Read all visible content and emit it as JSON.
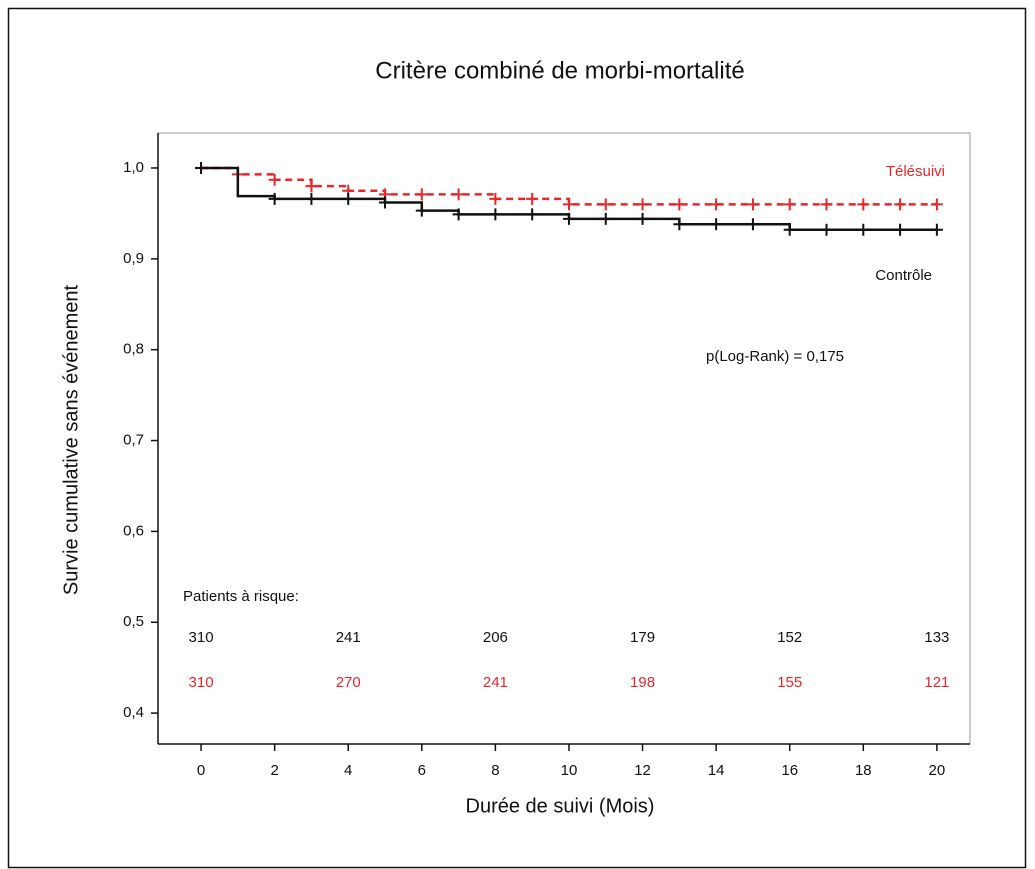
{
  "chart_data": {
    "type": "step",
    "title": "Critère combiné de morbi-mortalité",
    "x_label": "Durée de suivi (Mois)",
    "y_label": "Survie cumulative sans événement",
    "annotation": "p(Log-Rank) = 0,175",
    "at_risk_title": "Patients à risque:",
    "at_risk_x": [
      0,
      4,
      8,
      12,
      16,
      20
    ],
    "xlim": [
      -1.17,
      20.9
    ],
    "ylim": [
      0.366,
      1.0385
    ],
    "xticks": [
      0,
      2,
      4,
      6,
      8,
      10,
      12,
      14,
      16,
      18,
      20
    ],
    "yticks": [
      {
        "value": 0.4,
        "label": "0,4"
      },
      {
        "value": 0.5,
        "label": "0,5"
      },
      {
        "value": 0.6,
        "label": "0,6"
      },
      {
        "value": 0.7,
        "label": "0,7"
      },
      {
        "value": 0.8,
        "label": "0,8"
      },
      {
        "value": 0.9,
        "label": "0,9"
      },
      {
        "value": 1.0,
        "label": "1,0"
      }
    ],
    "series": [
      {
        "name": "Télésuivi",
        "color": "#e8262b",
        "dashed": true,
        "x": [
          0,
          1,
          2,
          3,
          4,
          5,
          8,
          10,
          20
        ],
        "values": [
          1.0,
          0.993,
          0.987,
          0.98,
          0.975,
          0.971,
          0.966,
          0.96,
          0.96
        ],
        "censored_x": [
          0,
          1,
          2,
          3,
          4,
          5,
          6,
          7,
          8,
          9,
          10,
          11,
          12,
          13,
          14,
          15,
          16,
          17,
          18,
          19,
          20
        ],
        "at_risk": [
          310,
          270,
          241,
          198,
          155,
          121
        ]
      },
      {
        "name": "Contrôle",
        "color": "#111111",
        "dashed": false,
        "x": [
          0,
          1,
          2,
          5,
          6,
          7,
          10,
          13,
          16,
          20
        ],
        "values": [
          1.0,
          0.969,
          0.966,
          0.962,
          0.953,
          0.949,
          0.944,
          0.938,
          0.932,
          0.932
        ],
        "censored_x": [
          0,
          2,
          3,
          4,
          5,
          6,
          7,
          8,
          9,
          10,
          11,
          12,
          13,
          14,
          15,
          16,
          17,
          18,
          19,
          20
        ],
        "at_risk": [
          310,
          241,
          206,
          179,
          152,
          133
        ]
      }
    ]
  }
}
